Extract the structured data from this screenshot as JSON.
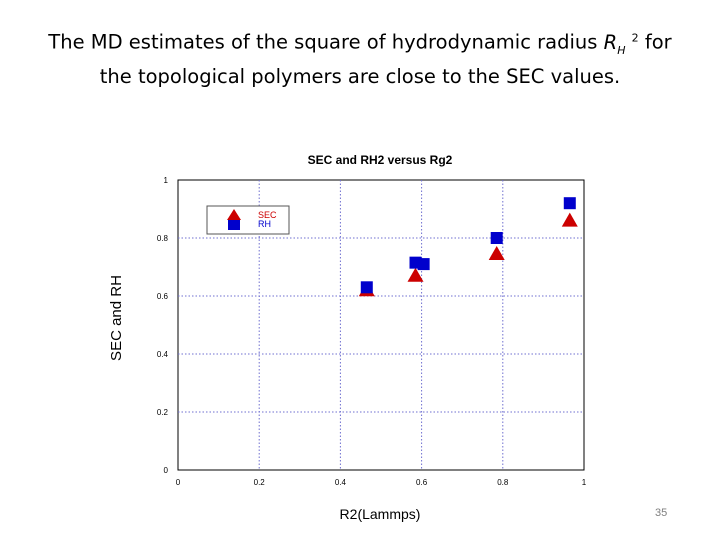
{
  "slide": {
    "title_line1_before": "The MD estimates of the square of hydrodynamic radius",
    "title_var": "R",
    "title_var_sub": "H",
    "title_var_sup": "2",
    "title_line1_after": "for",
    "title_line2": "the  topological polymers are close to the SEC values.",
    "page_number": "35"
  },
  "colors": {
    "sec": "#cc0000",
    "rh": "#0000cc",
    "grid": "#6f6fd0",
    "axis": "#000000"
  },
  "chart_data": {
    "type": "scatter",
    "title": "SEC and RH2 versus  Rg2",
    "xlabel": "R2(Lammps)",
    "ylabel": "SEC and RH",
    "xlim": [
      0,
      1
    ],
    "ylim": [
      0,
      1
    ],
    "xticks": [
      "0",
      "0.2",
      "0.4",
      "0.6",
      "0.8",
      "1"
    ],
    "yticks": [
      "0",
      "0.2",
      "0.4",
      "0.6",
      "0.8",
      "1"
    ],
    "grid": true,
    "legend_position": "top-left",
    "series": [
      {
        "name": "SEC",
        "marker": "triangle",
        "color": "#cc0000",
        "points": [
          [
            0.465,
            0.62
          ],
          [
            0.585,
            0.67
          ],
          [
            0.785,
            0.745
          ],
          [
            0.965,
            0.86
          ]
        ]
      },
      {
        "name": "RH",
        "marker": "square",
        "color": "#0000cc",
        "points": [
          [
            0.465,
            0.63
          ],
          [
            0.585,
            0.715
          ],
          [
            0.605,
            0.71
          ],
          [
            0.785,
            0.8
          ],
          [
            0.965,
            0.92
          ]
        ]
      }
    ]
  }
}
